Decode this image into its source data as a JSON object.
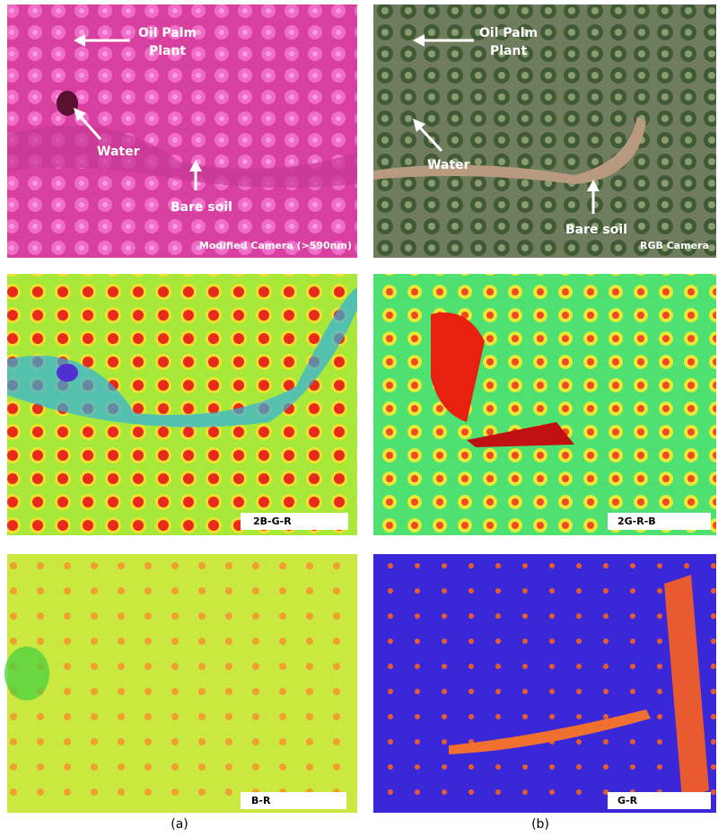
{
  "panels": [
    {
      "annotations": [
        {
          "lines": [
            "Oil Palm",
            "Plant"
          ]
        },
        {
          "lines": [
            "Water"
          ]
        },
        {
          "lines": [
            "Bare soil"
          ]
        }
      ],
      "label": "Modified Camera (>590nm)"
    },
    {
      "annotations": [
        {
          "lines": [
            "Oil Palm",
            "Plant"
          ]
        },
        {
          "lines": [
            "Water"
          ]
        },
        {
          "lines": [
            "Bare soil"
          ]
        }
      ],
      "label": "RGB Camera"
    },
    {
      "label": "2B-G-R"
    },
    {
      "label": "2G-R-B"
    },
    {
      "label": "B-R"
    },
    {
      "label": "G-R"
    }
  ],
  "captions": [
    "(a)",
    "(b)"
  ]
}
